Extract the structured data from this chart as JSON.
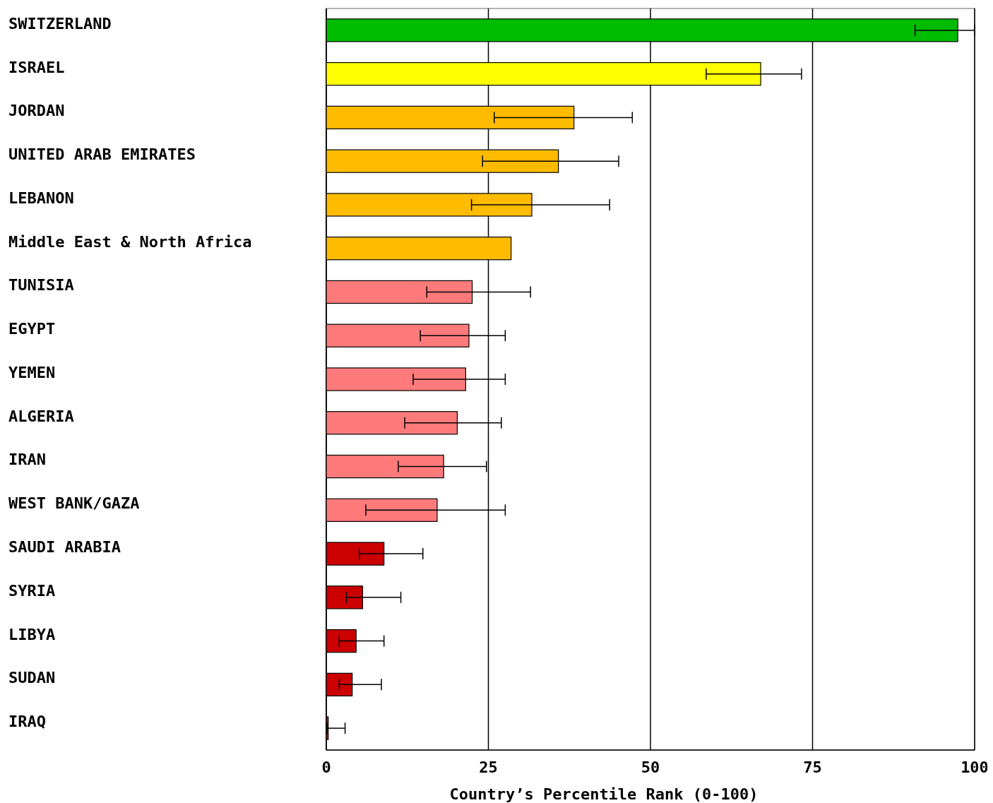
{
  "chart_data": {
    "type": "bar",
    "orientation": "horizontal",
    "xlabel": "Country’s Percentile Rank (0-100)",
    "categories": [
      "SWITZERLAND",
      "ISRAEL",
      "JORDAN",
      "UNITED ARAB EMIRATES",
      "LEBANON",
      "Middle East & North Africa",
      "TUNISIA",
      "EGYPT",
      "YEMEN",
      "ALGERIA",
      "IRAN",
      "WEST BANK/GAZA",
      "SAUDI ARABIA",
      "SYRIA",
      "LIBYA",
      "SUDAN",
      "IRAQ"
    ],
    "values": [
      97.4,
      67.0,
      38.2,
      35.8,
      31.7,
      28.5,
      22.5,
      22.0,
      21.5,
      20.2,
      18.1,
      17.1,
      8.9,
      5.6,
      4.6,
      4.0,
      0.3
    ],
    "colors": [
      "#00bb00",
      "#ffff00",
      "#ffbb00",
      "#ffbb00",
      "#ffbb00",
      "#ffbb00",
      "#ff7b7b",
      "#ff7b7b",
      "#ff7b7b",
      "#ff7b7b",
      "#ff7b7b",
      "#ff7b7b",
      "#cc0000",
      "#cc0000",
      "#cc0000",
      "#cc0000",
      "#cc0000"
    ],
    "errors": [
      [
        90.8,
        100
      ],
      [
        58.6,
        73.3
      ],
      [
        25.9,
        47.2
      ],
      [
        24.1,
        45.1
      ],
      [
        22.4,
        43.7
      ],
      null,
      [
        15.5,
        31.5
      ],
      [
        14.5,
        27.6
      ],
      [
        13.4,
        27.6
      ],
      [
        12.1,
        27.0
      ],
      [
        11.1,
        24.7
      ],
      [
        6.1,
        27.6
      ],
      [
        5.1,
        14.9
      ],
      [
        3.1,
        11.5
      ],
      [
        2.0,
        8.9
      ],
      [
        2.0,
        8.5
      ],
      [
        0.1,
        2.9
      ]
    ],
    "xlim": [
      0,
      100
    ],
    "xticks": [
      0,
      25,
      50,
      75,
      100
    ],
    "grid": "x"
  }
}
